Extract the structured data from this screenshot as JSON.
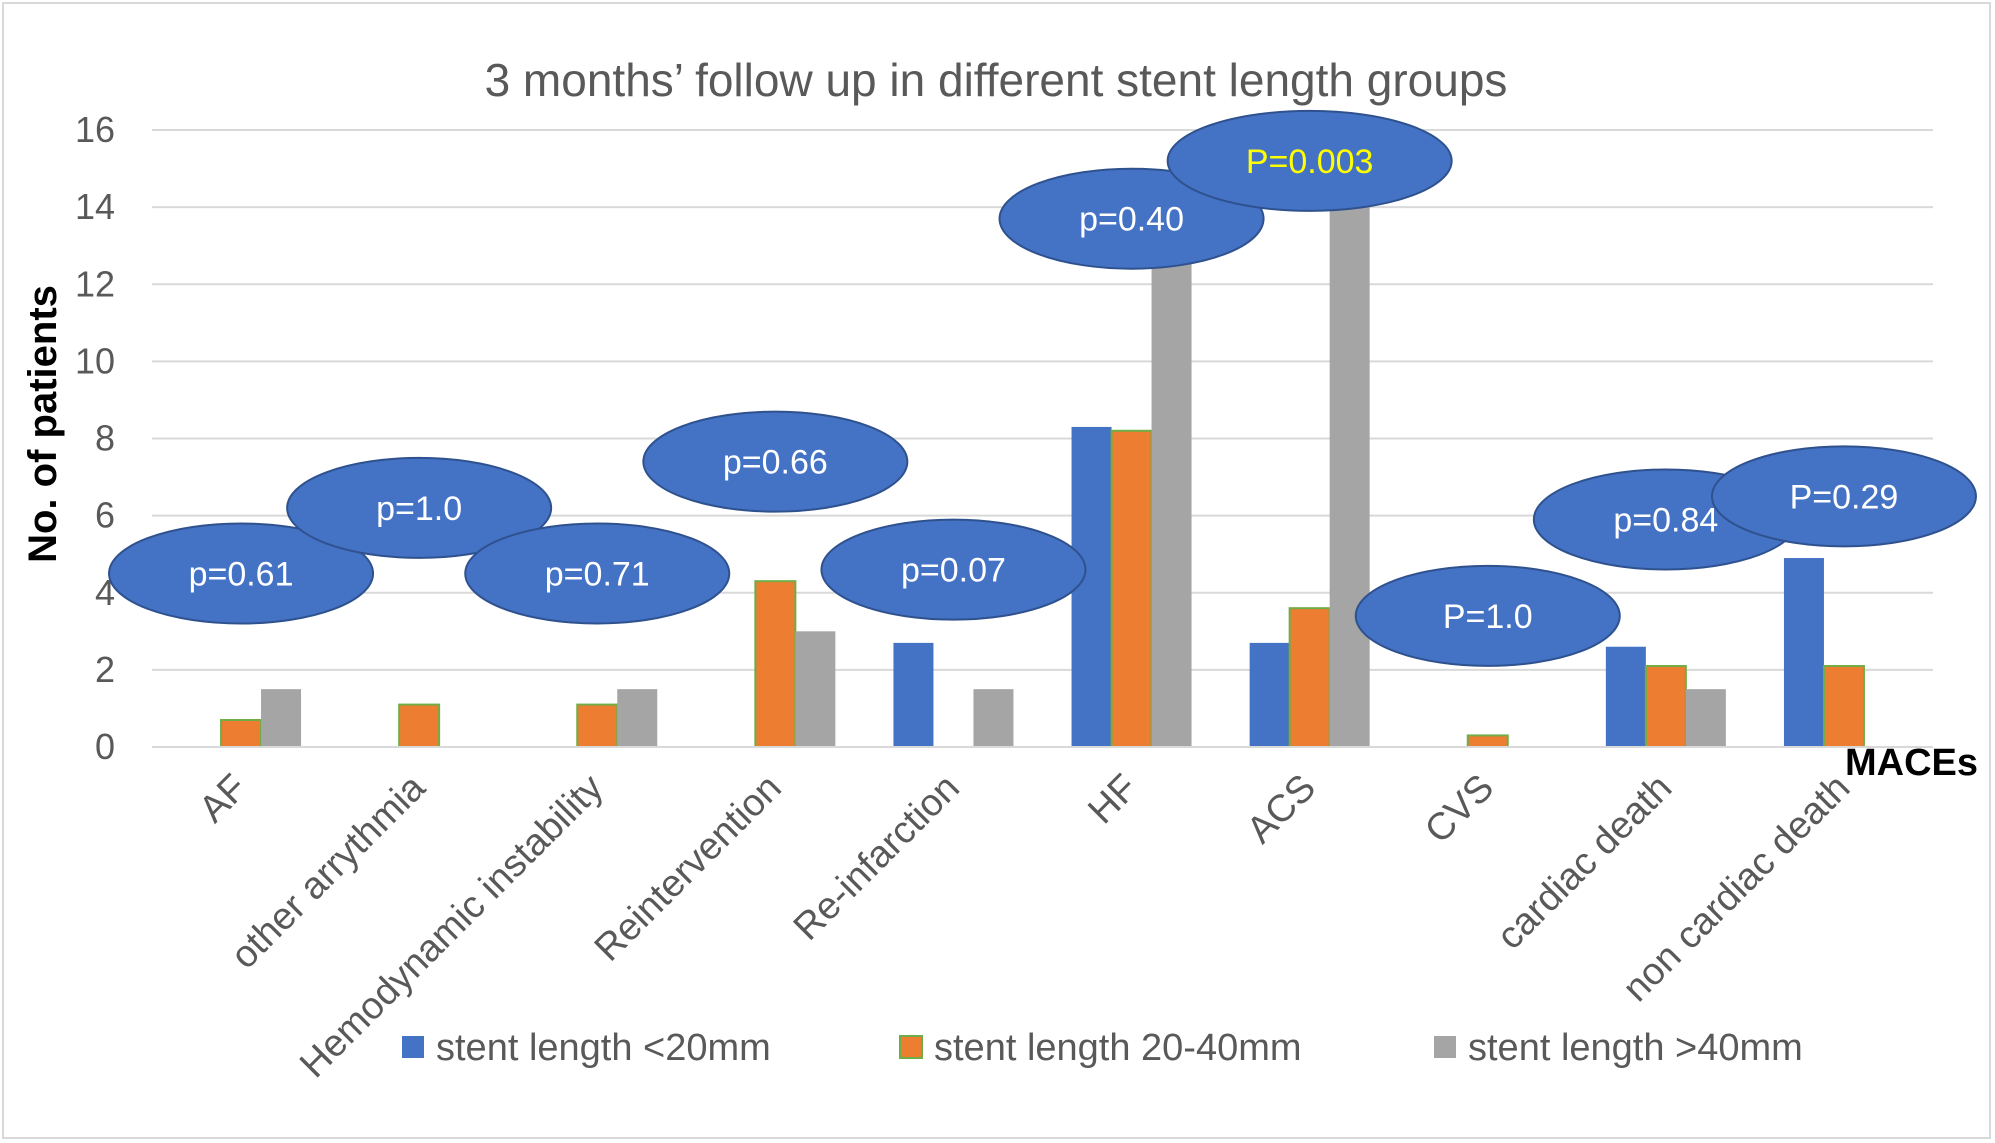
{
  "colors": {
    "series": [
      "#4472c4",
      "#ed7d31",
      "#a5a5a5"
    ],
    "orange_border": "#70ad47",
    "annotation_fill": "#4472c4",
    "annotation_text": "#ffffff",
    "annotation_highlight_text": "#ffff00",
    "grid": "#d9d9d9",
    "text": "#595959"
  },
  "chart_data": {
    "type": "bar",
    "title": "3 months’ follow up in different stent length groups",
    "xlabel": "MACEs",
    "ylabel": "No. of patients",
    "ylim": [
      0,
      16
    ],
    "yticks": [
      0,
      2,
      4,
      6,
      8,
      10,
      12,
      14,
      16
    ],
    "grid": true,
    "legend_position": "bottom",
    "categories": [
      "AF",
      "other arrythmia",
      "Hemodynamic instability",
      "Reintervention",
      "Re-infarction",
      "HF",
      "ACS",
      "CVS",
      "cardiac death",
      "non cardiac death"
    ],
    "series": [
      {
        "name": "stent length <20mm",
        "values": [
          0,
          0,
          0,
          0,
          2.7,
          8.3,
          2.7,
          0,
          2.6,
          4.9
        ]
      },
      {
        "name": "stent length 20-40mm",
        "values": [
          0.7,
          1.1,
          1.1,
          4.3,
          0,
          8.2,
          3.6,
          0.3,
          2.1,
          2.1
        ]
      },
      {
        "name": "stent length >40mm",
        "values": [
          1.5,
          0,
          1.5,
          3.0,
          1.5,
          13.0,
          14.2,
          0,
          1.5,
          0
        ]
      }
    ],
    "annotations": [
      {
        "text": "p=0.61",
        "category": "AF",
        "y": 4.5,
        "highlight": false
      },
      {
        "text": "p=1.0",
        "category": "other arrythmia",
        "y": 6.2,
        "highlight": false
      },
      {
        "text": "p=0.71",
        "category": "Hemodynamic instability",
        "y": 4.5,
        "highlight": false
      },
      {
        "text": "p=0.66",
        "category": "Reintervention",
        "y": 7.4,
        "highlight": false
      },
      {
        "text": "p=0.07",
        "category": "Re-infarction",
        "y": 4.6,
        "highlight": false
      },
      {
        "text": "p=0.40",
        "category": "HF",
        "y": 13.7,
        "highlight": false
      },
      {
        "text": "P=0.003",
        "category": "ACS",
        "y": 15.2,
        "highlight": true
      },
      {
        "text": "P=1.0",
        "category": "CVS",
        "y": 3.4,
        "highlight": false
      },
      {
        "text": "p=0.84",
        "category": "cardiac death",
        "y": 5.9,
        "highlight": false
      },
      {
        "text": "P=0.29",
        "category": "non cardiac death",
        "y": 6.5,
        "highlight": false
      }
    ]
  }
}
